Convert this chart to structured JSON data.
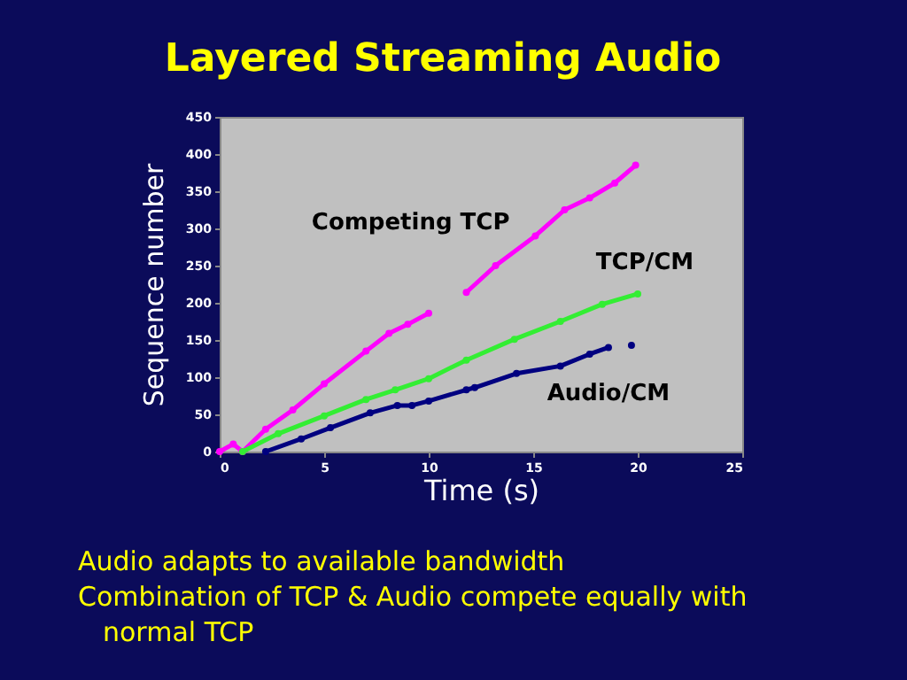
{
  "chart_data": {
    "type": "line",
    "title": "Layered Streaming Audio",
    "xlabel": "Time (s)",
    "ylabel": "Sequence number",
    "xlim": [
      0,
      25
    ],
    "xticks": [
      0,
      5,
      10,
      15,
      20,
      25
    ],
    "ylim": [
      0,
      450
    ],
    "yticks": [
      0,
      50,
      100,
      150,
      200,
      250,
      300,
      350,
      400,
      450
    ],
    "grid": false,
    "marker": "circle",
    "annotations": [
      "Audio adapts to available bandwidth",
      "Combination of TCP & Audio compete equally with normal TCP"
    ],
    "series": [
      {
        "name": "Competing TCP",
        "color": "#ff00ff",
        "x": [
          0,
          0.65,
          1.1,
          2.2,
          3.5,
          5,
          7,
          8.1,
          9,
          10,
          10.5,
          11.8,
          13.2,
          15.1,
          16.5,
          17.7,
          18.9,
          19.9
        ],
        "values": [
          0,
          10,
          0,
          30,
          56,
          91,
          135,
          159,
          171,
          186,
          null,
          214,
          250,
          290,
          325,
          341,
          361,
          385
        ]
      },
      {
        "name": "TCP/CM",
        "color": "#33ee33",
        "x": [
          1.1,
          2.8,
          5,
          7,
          8.4,
          10,
          11.8,
          14.1,
          16.3,
          18.3,
          20
        ],
        "values": [
          0,
          24,
          48,
          70,
          83,
          98,
          123,
          151,
          175,
          198,
          212
        ]
      },
      {
        "name": "Audio/CM",
        "color": "#000080",
        "x": [
          2.2,
          3.9,
          5.3,
          7.2,
          8.5,
          9.2,
          10,
          11.8,
          12.2,
          14.2,
          16.3,
          17.7,
          18.6,
          19.2,
          19.7
        ],
        "values": [
          0,
          17,
          32,
          52,
          62,
          62,
          68,
          83,
          86,
          105,
          115,
          131,
          140,
          null,
          143
        ]
      }
    ]
  }
}
